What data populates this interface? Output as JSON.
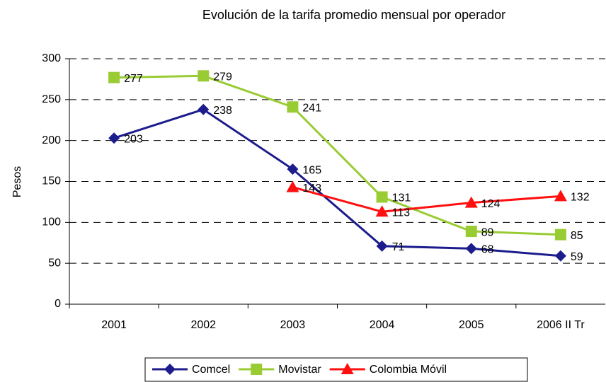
{
  "chart_data": {
    "type": "line",
    "title": "Evolución de la tarifa promedio mensual por operador",
    "ylabel": "Pesos",
    "categories": [
      "2001",
      "2002",
      "2003",
      "2004",
      "2005",
      "2006 II Tr"
    ],
    "series": [
      {
        "name": "Comcel",
        "color": "#1c1c8c",
        "marker": "diamond",
        "values": [
          203,
          238,
          165,
          71,
          68,
          59
        ]
      },
      {
        "name": "Movistar",
        "color": "#99cc33",
        "marker": "square",
        "values": [
          277,
          279,
          241,
          131,
          89,
          85
        ]
      },
      {
        "name": "Colombia Móvil",
        "color": "#ff1010",
        "marker": "triangle",
        "values": [
          null,
          null,
          143,
          113,
          124,
          132
        ]
      }
    ],
    "ylim": [
      0,
      300
    ],
    "yticks": [
      0,
      50,
      100,
      150,
      200,
      250,
      300
    ],
    "grid": true,
    "legend": "bottom"
  }
}
